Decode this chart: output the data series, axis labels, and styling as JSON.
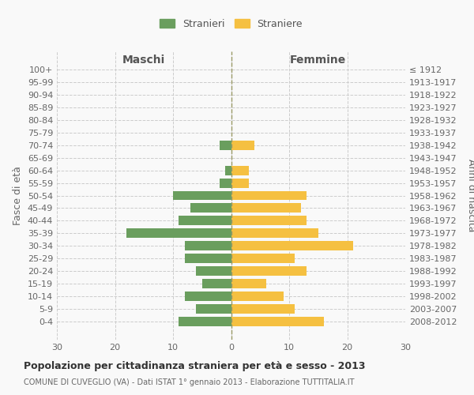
{
  "age_groups": [
    "100+",
    "95-99",
    "90-94",
    "85-89",
    "80-84",
    "75-79",
    "70-74",
    "65-69",
    "60-64",
    "55-59",
    "50-54",
    "45-49",
    "40-44",
    "35-39",
    "30-34",
    "25-29",
    "20-24",
    "15-19",
    "10-14",
    "5-9",
    "0-4"
  ],
  "birth_years": [
    "≤ 1912",
    "1913-1917",
    "1918-1922",
    "1923-1927",
    "1928-1932",
    "1933-1937",
    "1938-1942",
    "1943-1947",
    "1948-1952",
    "1953-1957",
    "1958-1962",
    "1963-1967",
    "1968-1972",
    "1973-1977",
    "1978-1982",
    "1983-1987",
    "1988-1992",
    "1993-1997",
    "1998-2002",
    "2003-2007",
    "2008-2012"
  ],
  "maschi": [
    0,
    0,
    0,
    0,
    0,
    0,
    2,
    0,
    1,
    2,
    10,
    7,
    9,
    18,
    8,
    8,
    6,
    5,
    8,
    6,
    9
  ],
  "femmine": [
    0,
    0,
    0,
    0,
    0,
    0,
    4,
    0,
    3,
    3,
    13,
    12,
    13,
    15,
    21,
    11,
    13,
    6,
    9,
    11,
    16
  ],
  "male_color": "#6a9e5e",
  "female_color": "#f5c041",
  "background_color": "#f9f9f9",
  "grid_color": "#cccccc",
  "center_line_color": "#999966",
  "title": "Popolazione per cittadinanza straniera per età e sesso - 2013",
  "subtitle": "COMUNE DI CUVEGLIO (VA) - Dati ISTAT 1° gennaio 2013 - Elaborazione TUTTITALIA.IT",
  "ylabel_left": "Fasce di età",
  "ylabel_right": "Anni di nascita",
  "xlabel_maschi": "Maschi",
  "xlabel_femmine": "Femmine",
  "legend_maschi": "Stranieri",
  "legend_femmine": "Straniere",
  "xlim": 30,
  "tick_fontsize": 8,
  "label_fontsize": 9,
  "header_fontsize": 10,
  "title_fontsize": 9,
  "subtitle_fontsize": 7
}
